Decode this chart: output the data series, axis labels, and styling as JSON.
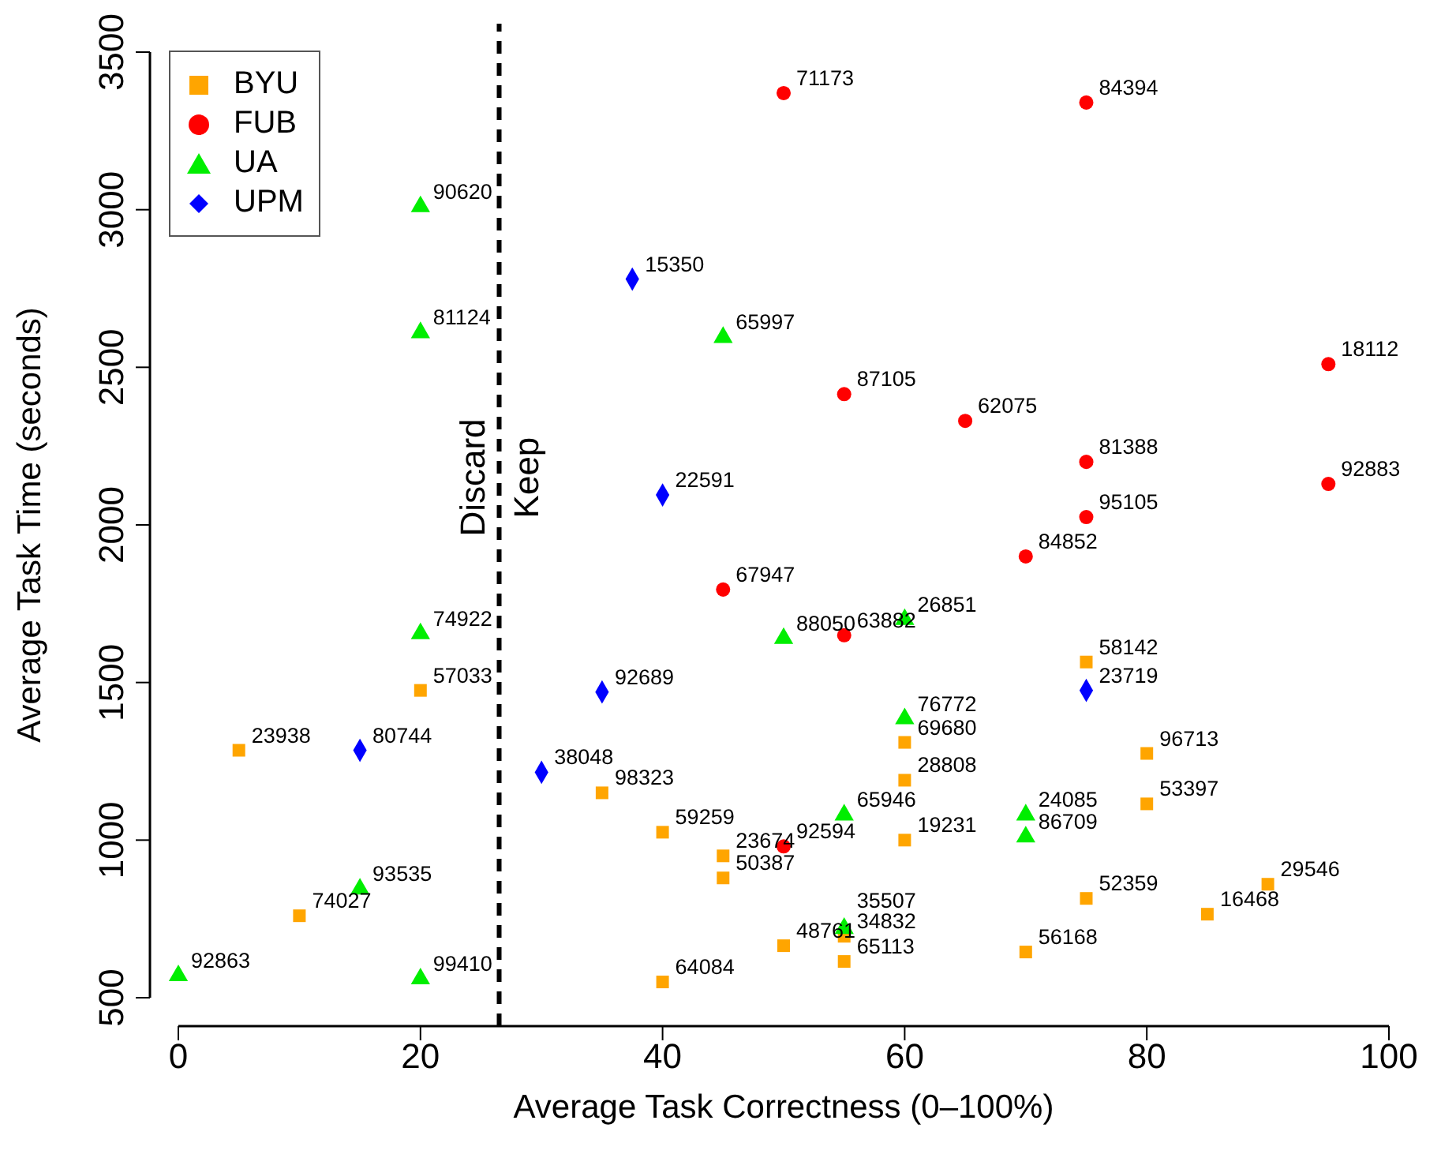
{
  "chart_data": {
    "type": "scatter",
    "xlabel": "Average Task Correctness (0–100%)",
    "ylabel": "Average Task Time (seconds)",
    "xlim": [
      0,
      100
    ],
    "ylim": [
      500,
      3500
    ],
    "xticks": [
      0,
      20,
      40,
      60,
      80,
      100
    ],
    "yticks": [
      500,
      1000,
      1500,
      2000,
      2500,
      3000,
      3500
    ],
    "grid": false,
    "legend": "top left",
    "series": [
      {
        "name": "BYU",
        "color": "#ffa500",
        "marker": "square",
        "x": [
          5,
          10,
          20,
          35,
          40,
          45,
          45,
          40,
          50,
          55,
          55,
          60,
          60,
          60,
          75,
          75,
          70,
          80,
          80,
          90,
          85
        ],
        "values": [
          1285,
          760,
          1475,
          1150,
          1025,
          950,
          880,
          550,
          665,
          695,
          615,
          1310,
          1190,
          1000,
          1565,
          815,
          645,
          1275,
          1115,
          860,
          765
        ]
      },
      {
        "name": "FUB",
        "color": "#ff0000",
        "marker": "circle",
        "x": [
          50,
          75,
          95,
          55,
          65,
          75,
          95,
          75,
          70,
          45,
          55,
          50
        ],
        "values": [
          3370,
          3340,
          2510,
          2415,
          2330,
          2200,
          2130,
          2025,
          1900,
          1795,
          1650,
          980
        ]
      },
      {
        "name": "UA",
        "color": "#00ee00",
        "marker": "triangle",
        "x": [
          20,
          20,
          45,
          20,
          50,
          60,
          60,
          55,
          70,
          70,
          15,
          55,
          0,
          20
        ],
        "values": [
          3010,
          2610,
          2595,
          1655,
          1640,
          1700,
          1385,
          1080,
          1080,
          1010,
          845,
          720,
          570,
          560
        ]
      },
      {
        "name": "UPM",
        "color": "#0000ff",
        "marker": "diamond",
        "x": [
          37.5,
          40,
          35,
          75,
          15,
          30
        ],
        "values": [
          2780,
          2095,
          1470,
          1475,
          1285,
          1215
        ]
      }
    ],
    "ref_lines": [
      {
        "axis": "x",
        "value": 26.5,
        "color": "#000000",
        "line_style": "dashed"
      }
    ],
    "annotations": [
      {
        "text": "23938",
        "x": 5,
        "y": 1285
      },
      {
        "text": "74027",
        "x": 10,
        "y": 760
      },
      {
        "text": "57033",
        "x": 20,
        "y": 1475
      },
      {
        "text": "98323",
        "x": 35,
        "y": 1150
      },
      {
        "text": "59259",
        "x": 40,
        "y": 1025
      },
      {
        "text": "23674",
        "x": 45,
        "y": 950
      },
      {
        "text": "50387",
        "x": 45,
        "y": 880
      },
      {
        "text": "64084",
        "x": 40,
        "y": 550
      },
      {
        "text": "48761",
        "x": 50,
        "y": 665
      },
      {
        "text": "34832",
        "x": 55,
        "y": 695
      },
      {
        "text": "65113",
        "x": 55,
        "y": 615
      },
      {
        "text": "69680",
        "x": 60,
        "y": 1310
      },
      {
        "text": "28808",
        "x": 60,
        "y": 1190
      },
      {
        "text": "19231",
        "x": 60,
        "y": 1000
      },
      {
        "text": "58142",
        "x": 75,
        "y": 1565
      },
      {
        "text": "52359",
        "x": 75,
        "y": 815
      },
      {
        "text": "56168",
        "x": 70,
        "y": 645
      },
      {
        "text": "96713",
        "x": 80,
        "y": 1275
      },
      {
        "text": "53397",
        "x": 80,
        "y": 1115
      },
      {
        "text": "29546",
        "x": 90,
        "y": 860
      },
      {
        "text": "16468",
        "x": 85,
        "y": 765
      },
      {
        "text": "71173",
        "x": 50,
        "y": 3370
      },
      {
        "text": "84394",
        "x": 75,
        "y": 3340
      },
      {
        "text": "18112",
        "x": 95,
        "y": 2510
      },
      {
        "text": "87105",
        "x": 55,
        "y": 2415
      },
      {
        "text": "62075",
        "x": 65,
        "y": 2330
      },
      {
        "text": "81388",
        "x": 75,
        "y": 2200
      },
      {
        "text": "92883",
        "x": 95,
        "y": 2130
      },
      {
        "text": "95105",
        "x": 75,
        "y": 2025
      },
      {
        "text": "84852",
        "x": 70,
        "y": 1900
      },
      {
        "text": "67947",
        "x": 45,
        "y": 1795
      },
      {
        "text": "63882",
        "x": 55,
        "y": 1650
      },
      {
        "text": "92594",
        "x": 50,
        "y": 980
      },
      {
        "text": "90620",
        "x": 20,
        "y": 3010
      },
      {
        "text": "81124",
        "x": 20,
        "y": 2610
      },
      {
        "text": "65997",
        "x": 45,
        "y": 2595
      },
      {
        "text": "74922",
        "x": 20,
        "y": 1655
      },
      {
        "text": "88050",
        "x": 50,
        "y": 1640
      },
      {
        "text": "26851",
        "x": 60,
        "y": 1700
      },
      {
        "text": "76772",
        "x": 60,
        "y": 1385
      },
      {
        "text": "65946",
        "x": 55,
        "y": 1080
      },
      {
        "text": "24085",
        "x": 70,
        "y": 1080
      },
      {
        "text": "86709",
        "x": 70,
        "y": 1010
      },
      {
        "text": "93535",
        "x": 15,
        "y": 845
      },
      {
        "text": "35507",
        "x": 55,
        "y": 720
      },
      {
        "text": "92863",
        "x": 0,
        "y": 570
      },
      {
        "text": "99410",
        "x": 20,
        "y": 560
      },
      {
        "text": "15350",
        "x": 37.5,
        "y": 2780
      },
      {
        "text": "22591",
        "x": 40,
        "y": 2095
      },
      {
        "text": "92689",
        "x": 35,
        "y": 1470
      },
      {
        "text": "23719",
        "x": 75,
        "y": 1475
      },
      {
        "text": "80744",
        "x": 15,
        "y": 1285
      },
      {
        "text": "38048",
        "x": 30,
        "y": 1215
      },
      "Discard",
      "Keep"
    ]
  }
}
